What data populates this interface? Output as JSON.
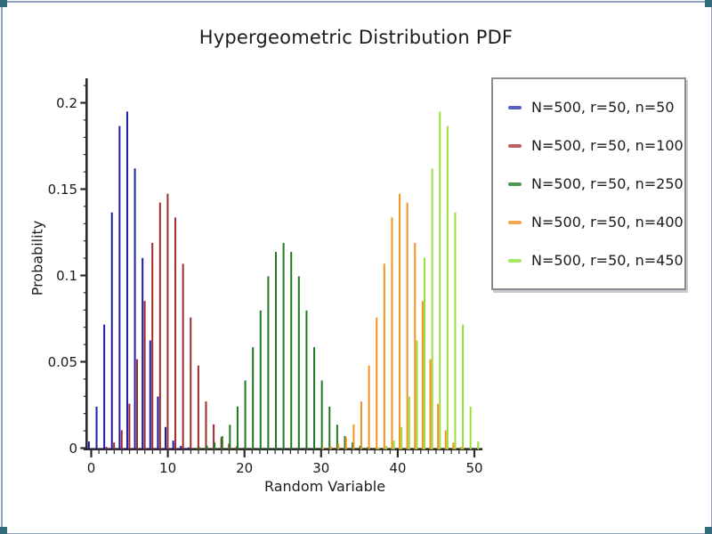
{
  "frame": {
    "border_color": "#8ba3c1",
    "corner_color": "#2f6b78"
  },
  "chart_data": {
    "type": "bar",
    "title": "Hypergeometric Distribution PDF",
    "xlabel": "Random Variable",
    "ylabel": "Probability",
    "xlim": [
      0,
      50
    ],
    "ylim": [
      0,
      0.2
    ],
    "xticks_major": [
      0,
      10,
      20,
      30,
      40,
      50
    ],
    "xtick_labels": [
      "0",
      "10",
      "20",
      "30",
      "40",
      "50"
    ],
    "yticks_major": [
      0,
      0.05,
      0.1,
      0.15,
      0.2
    ],
    "ytick_labels": [
      "0",
      "0.05",
      "0.1",
      "0.15",
      "0.2"
    ],
    "minor_x_step": 1,
    "minor_y_step": 0.01,
    "grid": "off",
    "legend_position": "right",
    "axis_color": "#2b2b2b",
    "series": [
      {
        "name": "N=500, r=50, n=50",
        "color": "#1c1ca8",
        "legend_color": "#565fc5",
        "k_start": 0,
        "values": [
          0.00384,
          0.02398,
          0.07159,
          0.13645,
          0.18652,
          0.1949,
          0.16201,
          0.11009,
          0.06236,
          0.02989,
          0.01225,
          0.00434,
          0.00133,
          0.00036,
          9e-05
        ]
      },
      {
        "name": "N=500, r=50, n=100",
        "color": "#9e2a2a",
        "legend_color": "#bb5f5f",
        "k_start": 0,
        "values": [
          1e-05,
          0.0001,
          0.00072,
          0.00321,
          0.01033,
          0.02571,
          0.05145,
          0.08515,
          0.1189,
          0.14219,
          0.14737,
          0.1336,
          0.10675,
          0.07565,
          0.04778,
          0.02702,
          0.01373,
          0.00628,
          0.0026,
          0.00097,
          0.00033,
          0.0001
        ]
      },
      {
        "name": "N=500, r=50, n=250",
        "color": "#1e7a1e",
        "legend_color": "#4f984f",
        "k_start": 13,
        "values": [
          0.0002,
          0.00056,
          0.00141,
          0.00327,
          0.00695,
          0.01352,
          0.02407,
          0.0392,
          0.05844,
          0.07971,
          0.0995,
          0.11367,
          0.11882,
          0.11367,
          0.0995,
          0.07971,
          0.05844,
          0.0392,
          0.02407,
          0.01352,
          0.00695,
          0.00327,
          0.00141,
          0.00056,
          0.0002
        ]
      },
      {
        "name": "N=500, r=50, n=400",
        "color": "#f6931f",
        "legend_color": "#f3a84d",
        "k_start": 29,
        "values": [
          0.0001,
          0.00033,
          0.00097,
          0.0026,
          0.00628,
          0.01373,
          0.02702,
          0.04778,
          0.07565,
          0.10675,
          0.1336,
          0.14737,
          0.14219,
          0.1189,
          0.08515,
          0.05145,
          0.02571,
          0.01033,
          0.00321,
          0.00072,
          0.0001,
          1e-05
        ]
      },
      {
        "name": "N=500, r=50, n=450",
        "color": "#96e03a",
        "legend_color": "#a6e766",
        "k_start": 36,
        "values": [
          9e-05,
          0.00036,
          0.00133,
          0.00434,
          0.01225,
          0.02989,
          0.06236,
          0.11009,
          0.16201,
          0.1949,
          0.18652,
          0.13645,
          0.07159,
          0.02398,
          0.00384
        ]
      }
    ]
  }
}
